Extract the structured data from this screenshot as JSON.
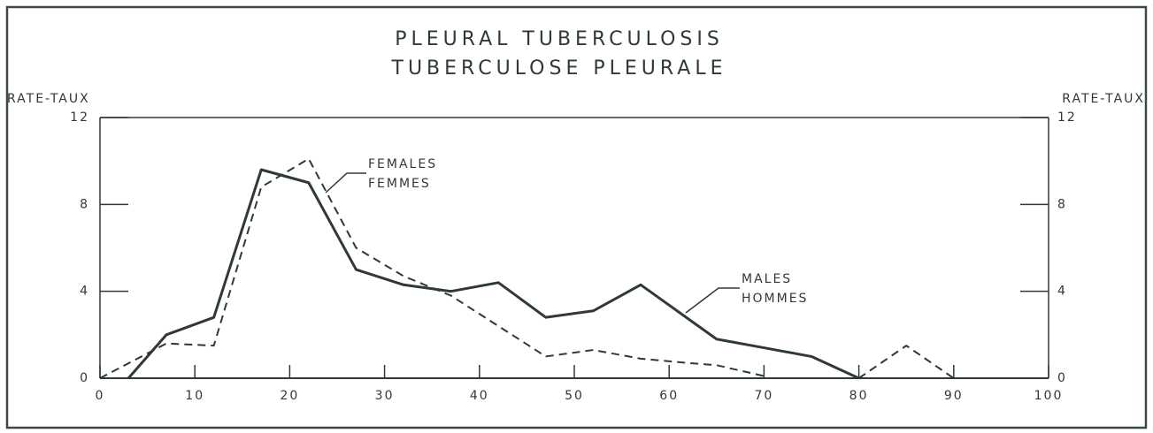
{
  "chart_data": {
    "type": "line",
    "title": "PLEURAL TUBERCULOSIS",
    "subtitle": "TUBERCULOSE PLEURALE",
    "y_label": "RATE-TAUX",
    "y2_label": "RATE-TAUX",
    "xlim": [
      0,
      100
    ],
    "xticks": [
      0,
      10,
      20,
      30,
      40,
      50,
      60,
      70,
      80,
      90,
      100
    ],
    "ylim": [
      0,
      12
    ],
    "yticks": [
      0,
      4,
      8,
      12
    ],
    "y2lim": [
      0,
      12
    ],
    "y2ticks": [
      0,
      4,
      8,
      12
    ],
    "series": [
      {
        "name": "MALES",
        "name_fr": "HOMMES",
        "color": "#2f3a33",
        "dash": false,
        "x": [
          3,
          7,
          12,
          17,
          22,
          27,
          32,
          37,
          42,
          47,
          52,
          57,
          65,
          70,
          75,
          80
        ],
        "values": [
          0,
          2.0,
          2.8,
          9.6,
          9.0,
          5.0,
          4.3,
          4.0,
          4.4,
          2.8,
          3.1,
          4.3,
          1.8,
          1.4,
          1.0,
          0
        ]
      },
      {
        "name": "FEMALES",
        "name_fr": "FEMMES",
        "color": "#2f3a33",
        "dash": true,
        "x": [
          0,
          7,
          12,
          17,
          22,
          27,
          32,
          37,
          42,
          47,
          52,
          57,
          62,
          65,
          70,
          null,
          80,
          85,
          90
        ],
        "values": [
          0,
          1.6,
          1.5,
          8.8,
          10.1,
          6.0,
          4.7,
          3.8,
          2.4,
          1.0,
          1.3,
          0.9,
          0.7,
          0.6,
          0.1,
          null,
          0,
          1.5,
          0
        ]
      }
    ]
  }
}
